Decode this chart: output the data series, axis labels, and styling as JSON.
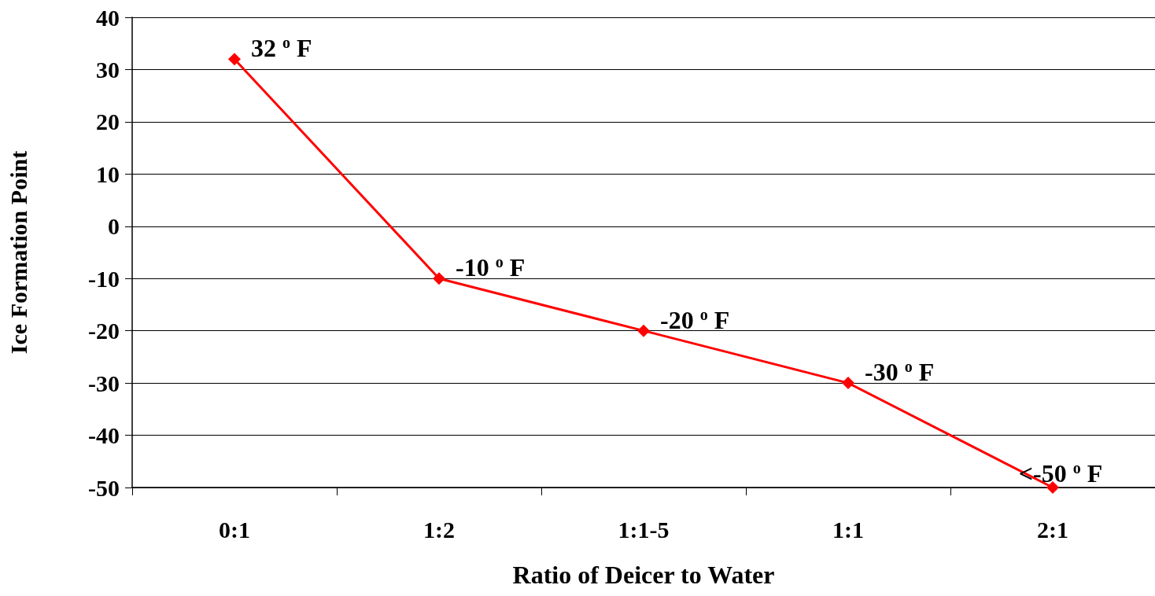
{
  "chart_data": {
    "type": "line",
    "xlabel": "Ratio of Deicer to Water",
    "ylabel": "Ice Formation Point",
    "categories": [
      "0:1",
      "1:2",
      "1:1-5",
      "1:1",
      "2:1"
    ],
    "series": [
      {
        "color": "#ff0000",
        "values": [
          32,
          -10,
          -20,
          -30,
          -50
        ],
        "value_labels": [
          "32 $^{o}$ F",
          "-10 $^{o}$ F",
          "-20 $^{o}$ F",
          "-30 $^{o}$ F",
          "<-50 $^{o}$ F"
        ]
      }
    ],
    "ylim": [
      -50,
      40
    ],
    "yticks": [
      -50,
      -40,
      -30,
      -20,
      -10,
      0,
      10,
      20,
      30,
      40
    ],
    "grid": "y",
    "marker": "diamond",
    "line_style": "solid"
  }
}
